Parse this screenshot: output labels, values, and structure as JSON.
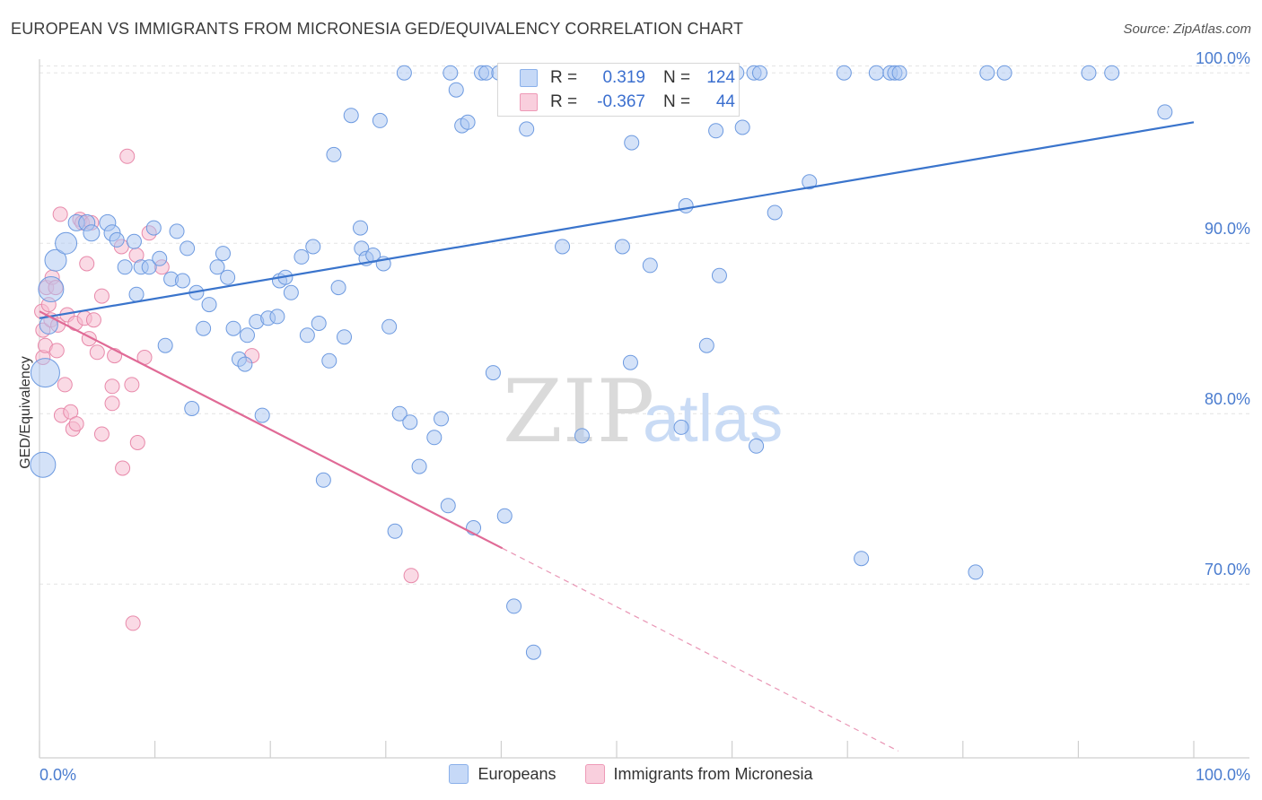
{
  "header": {
    "title": "EUROPEAN VS IMMIGRANTS FROM MICRONESIA GED/EQUIVALENCY CORRELATION CHART",
    "source": "Source: ZipAtlas.com"
  },
  "watermark": {
    "zip": "ZIP",
    "atlas": "atlas"
  },
  "stats": {
    "r_label": "R =",
    "n_label": "N =",
    "rows": [
      {
        "r": "0.319",
        "n": "124",
        "color": "#c6d9f7"
      },
      {
        "r": "-0.367",
        "n": "44",
        "color": "#f9cfdd"
      }
    ]
  },
  "legend": {
    "items": [
      {
        "label": "Europeans",
        "color": "#c6d9f7"
      },
      {
        "label": "Immigrants from Micronesia",
        "color": "#f9cfdd"
      }
    ]
  },
  "colors": {
    "blue_fill": "#a9c6f1",
    "blue_stroke": "#6d9ae0",
    "blue_line": "#3a74cc",
    "pink_fill": "#f6bcd0",
    "pink_stroke": "#e889aa",
    "pink_line": "#e06a96",
    "tick_label": "#4a7ccf",
    "grid": "#e3e3e3"
  },
  "chart_data": {
    "type": "scatter",
    "title": "EUROPEAN VS IMMIGRANTS FROM MICRONESIA GED/EQUIVALENCY CORRELATION CHART",
    "xlabel": "",
    "ylabel": "GED/Equivalency",
    "xlim": [
      0,
      100
    ],
    "ylim": [
      59.8,
      100.8
    ],
    "x_tick_labels": [
      "0.0%",
      "100.0%"
    ],
    "y_ticks": [
      70,
      80,
      90,
      100
    ],
    "y_tick_labels": [
      "70.0%",
      "80.0%",
      "90.0%",
      "100.0%"
    ],
    "grid": true,
    "legend_position": "bottom",
    "series": [
      {
        "name": "Europeans",
        "trend": {
          "x": [
            0,
            100
          ],
          "y": [
            85.6,
            97.1
          ]
        },
        "points": [
          [
            0.3,
            77.0,
            14
          ],
          [
            0.5,
            82.4,
            16
          ],
          [
            1.0,
            87.3,
            14
          ],
          [
            1.4,
            89.0,
            12
          ],
          [
            2.3,
            90.0,
            12
          ],
          [
            3.2,
            91.2,
            9
          ],
          [
            4.1,
            91.2,
            9
          ],
          [
            4.5,
            90.6,
            9
          ],
          [
            5.9,
            91.2,
            9
          ],
          [
            6.3,
            90.6,
            9
          ],
          [
            6.7,
            90.2,
            8
          ],
          [
            7.4,
            88.6,
            8
          ],
          [
            8.2,
            90.1,
            8
          ],
          [
            8.4,
            87.0,
            8
          ],
          [
            8.8,
            88.6,
            8
          ],
          [
            9.5,
            88.6,
            8
          ],
          [
            9.9,
            90.9,
            8
          ],
          [
            10.4,
            89.1,
            8
          ],
          [
            10.9,
            84.0,
            8
          ],
          [
            11.4,
            87.9,
            8
          ],
          [
            11.9,
            90.7,
            8
          ],
          [
            12.4,
            87.8,
            8
          ],
          [
            12.8,
            89.7,
            8
          ],
          [
            13.2,
            80.3,
            8
          ],
          [
            13.6,
            87.1,
            8
          ],
          [
            14.2,
            85.0,
            8
          ],
          [
            14.7,
            86.4,
            8
          ],
          [
            15.4,
            88.6,
            8
          ],
          [
            15.9,
            89.4,
            8
          ],
          [
            16.3,
            88.0,
            8
          ],
          [
            16.8,
            85.0,
            8
          ],
          [
            17.3,
            83.2,
            8
          ],
          [
            17.8,
            82.9,
            8
          ],
          [
            18.0,
            84.6,
            8
          ],
          [
            18.8,
            85.4,
            8
          ],
          [
            19.3,
            79.9,
            8
          ],
          [
            19.8,
            85.6,
            8
          ],
          [
            20.6,
            85.7,
            8
          ],
          [
            20.8,
            87.8,
            8
          ],
          [
            21.3,
            88.0,
            8
          ],
          [
            21.8,
            87.1,
            8
          ],
          [
            22.7,
            89.2,
            8
          ],
          [
            23.2,
            84.6,
            8
          ],
          [
            23.7,
            89.8,
            8
          ],
          [
            24.2,
            85.3,
            8
          ],
          [
            24.6,
            76.1,
            8
          ],
          [
            25.1,
            83.1,
            8
          ],
          [
            25.5,
            95.2,
            8
          ],
          [
            25.9,
            87.4,
            8
          ],
          [
            26.4,
            84.5,
            8
          ],
          [
            27.0,
            97.5,
            8
          ],
          [
            27.9,
            89.7,
            8
          ],
          [
            27.8,
            90.9,
            8
          ],
          [
            28.3,
            89.1,
            8
          ],
          [
            28.9,
            89.3,
            8
          ],
          [
            29.5,
            97.2,
            8
          ],
          [
            29.8,
            88.8,
            8
          ],
          [
            30.3,
            85.1,
            8
          ],
          [
            30.8,
            73.1,
            8
          ],
          [
            31.2,
            80.0,
            8
          ],
          [
            31.6,
            100.0,
            8
          ],
          [
            32.1,
            79.5,
            8
          ],
          [
            32.9,
            76.9,
            8
          ],
          [
            34.2,
            78.6,
            8
          ],
          [
            34.8,
            79.7,
            8
          ],
          [
            35.4,
            74.6,
            8
          ],
          [
            35.6,
            100.0,
            8
          ],
          [
            36.1,
            99.0,
            8
          ],
          [
            36.6,
            96.9,
            8
          ],
          [
            37.1,
            97.1,
            8
          ],
          [
            37.6,
            73.3,
            8
          ],
          [
            38.3,
            100.0,
            8
          ],
          [
            38.7,
            100.0,
            8
          ],
          [
            39.3,
            82.4,
            8
          ],
          [
            39.8,
            100.0,
            8
          ],
          [
            40.3,
            74.0,
            8
          ],
          [
            40.8,
            100.0,
            8
          ],
          [
            41.1,
            68.7,
            8
          ],
          [
            42.0,
            100.0,
            8
          ],
          [
            42.2,
            96.7,
            8
          ],
          [
            42.8,
            66.0,
            8
          ],
          [
            44.2,
            100.0,
            8
          ],
          [
            44.9,
            100.0,
            8
          ],
          [
            45.3,
            89.8,
            8
          ],
          [
            46.6,
            100.0,
            8
          ],
          [
            47.0,
            78.7,
            8
          ],
          [
            47.3,
            100.0,
            8
          ],
          [
            49.1,
            100.0,
            8
          ],
          [
            50.1,
            100.0,
            8
          ],
          [
            50.5,
            89.8,
            8
          ],
          [
            51.2,
            83.0,
            8
          ],
          [
            51.3,
            95.9,
            8
          ],
          [
            52.6,
            100.0,
            8
          ],
          [
            52.9,
            88.7,
            8
          ],
          [
            53.7,
            100.0,
            8
          ],
          [
            54.5,
            100.0,
            8
          ],
          [
            55.6,
            79.2,
            8
          ],
          [
            56.0,
            92.2,
            8
          ],
          [
            57.0,
            100.0,
            8
          ],
          [
            57.8,
            84.0,
            8
          ],
          [
            57.9,
            100.0,
            8
          ],
          [
            58.6,
            96.6,
            8
          ],
          [
            58.9,
            88.1,
            8
          ],
          [
            60.0,
            100.0,
            8
          ],
          [
            60.4,
            100.0,
            8
          ],
          [
            60.9,
            96.8,
            8
          ],
          [
            61.9,
            100.0,
            8
          ],
          [
            62.4,
            100.0,
            8
          ],
          [
            62.1,
            78.1,
            8
          ],
          [
            63.7,
            91.8,
            8
          ],
          [
            66.7,
            93.6,
            8
          ],
          [
            69.7,
            100.0,
            8
          ],
          [
            71.2,
            71.5,
            8
          ],
          [
            72.5,
            100.0,
            8
          ],
          [
            73.7,
            100.0,
            8
          ],
          [
            74.1,
            100.0,
            8
          ],
          [
            74.5,
            100.0,
            8
          ],
          [
            81.1,
            70.7,
            8
          ],
          [
            82.1,
            100.0,
            8
          ],
          [
            83.6,
            100.0,
            8
          ],
          [
            90.9,
            100.0,
            8
          ],
          [
            92.9,
            100.0,
            8
          ],
          [
            97.5,
            97.7,
            8
          ],
          [
            0.8,
            85.2,
            10
          ]
        ]
      },
      {
        "name": "Immigrants from Micronesia",
        "trend": {
          "x": [
            0,
            40.1
          ],
          "y": [
            86.0,
            72.1
          ]
        },
        "trend_extension": {
          "x": [
            40.1,
            74.4
          ],
          "y": [
            72.1,
            60.2
          ]
        },
        "points": [
          [
            0.2,
            86.0,
            8
          ],
          [
            0.3,
            84.9,
            8
          ],
          [
            0.3,
            83.3,
            8
          ],
          [
            0.5,
            84.0,
            8
          ],
          [
            0.6,
            87.4,
            8
          ],
          [
            0.8,
            86.4,
            8
          ],
          [
            1.0,
            85.5,
            8
          ],
          [
            1.1,
            88.0,
            8
          ],
          [
            1.4,
            87.4,
            8
          ],
          [
            1.5,
            83.7,
            8
          ],
          [
            1.6,
            85.2,
            8
          ],
          [
            1.8,
            91.7,
            8
          ],
          [
            1.9,
            79.9,
            8
          ],
          [
            2.2,
            81.7,
            8
          ],
          [
            2.4,
            85.8,
            8
          ],
          [
            2.7,
            80.1,
            8
          ],
          [
            2.9,
            79.1,
            8
          ],
          [
            3.1,
            85.3,
            8
          ],
          [
            3.2,
            79.4,
            8
          ],
          [
            3.5,
            91.4,
            8
          ],
          [
            3.7,
            91.2,
            8
          ],
          [
            3.9,
            85.6,
            8
          ],
          [
            4.1,
            88.8,
            8
          ],
          [
            4.3,
            84.4,
            8
          ],
          [
            4.5,
            91.2,
            8
          ],
          [
            4.7,
            85.5,
            8
          ],
          [
            5.0,
            83.6,
            8
          ],
          [
            5.4,
            78.8,
            8
          ],
          [
            5.4,
            86.9,
            8
          ],
          [
            6.3,
            80.6,
            8
          ],
          [
            6.3,
            81.6,
            8
          ],
          [
            6.5,
            83.4,
            8
          ],
          [
            7.1,
            89.8,
            8
          ],
          [
            7.2,
            76.8,
            8
          ],
          [
            7.6,
            95.1,
            8
          ],
          [
            8.0,
            81.7,
            8
          ],
          [
            8.1,
            67.7,
            8
          ],
          [
            8.4,
            89.3,
            8
          ],
          [
            8.5,
            78.3,
            8
          ],
          [
            9.1,
            83.3,
            8
          ],
          [
            9.5,
            90.6,
            8
          ],
          [
            10.6,
            88.6,
            8
          ],
          [
            18.4,
            83.4,
            8
          ],
          [
            32.2,
            70.5,
            8
          ]
        ]
      }
    ]
  }
}
